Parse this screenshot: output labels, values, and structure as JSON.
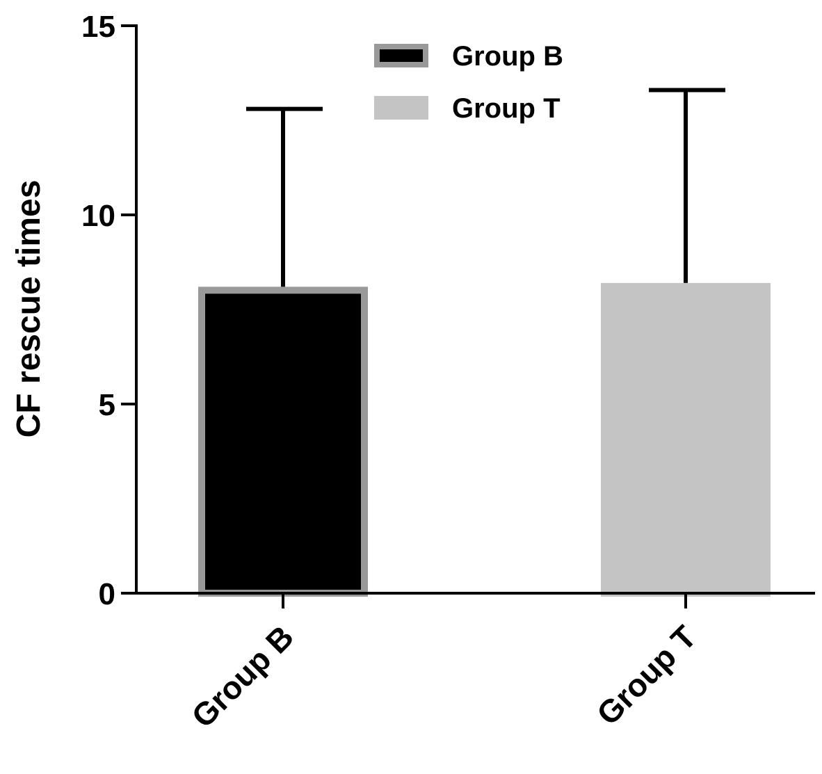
{
  "chart_data": {
    "type": "bar",
    "title": "",
    "xlabel": "",
    "ylabel": "CF rescue times",
    "ylim": [
      0,
      15
    ],
    "yticks": [
      0,
      5,
      10,
      15
    ],
    "categories": [
      "Group B",
      "Group T"
    ],
    "values": [
      8.1,
      8.2
    ],
    "error_upper": [
      12.8,
      13.3
    ],
    "colors": {
      "Group B": {
        "fill": "#000000",
        "border": "#999999"
      },
      "Group T": {
        "fill": "#c4c4c4",
        "border": "#c4c4c4"
      }
    },
    "legend": {
      "placement": "top-center",
      "entries": [
        "Group B",
        "Group T"
      ]
    },
    "grid": false
  }
}
